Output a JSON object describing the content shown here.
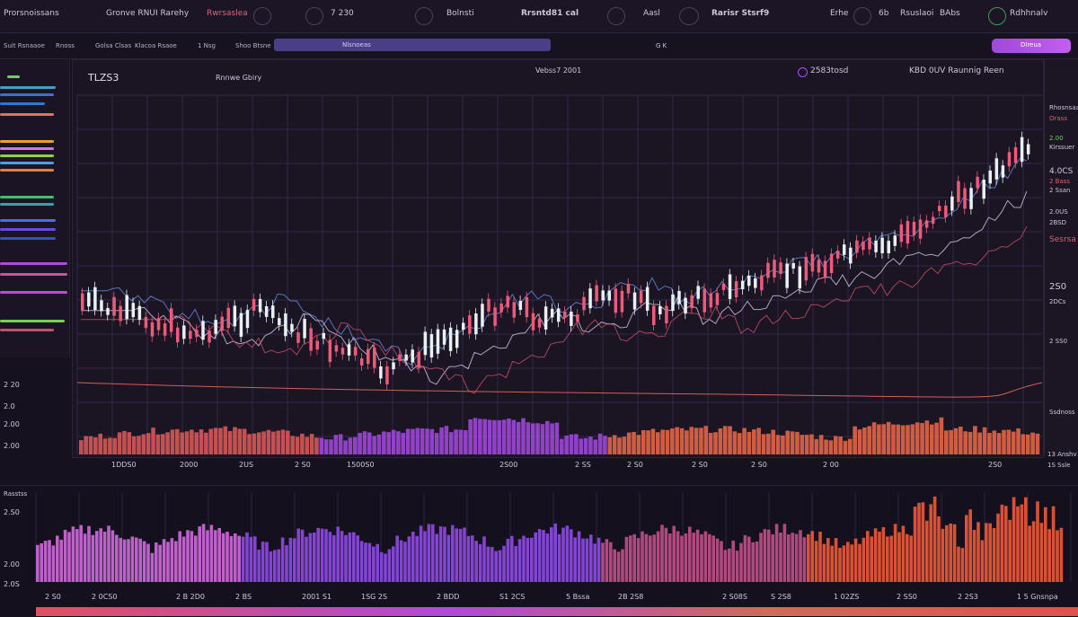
{
  "topbar": {
    "items": [
      "Prorsnoissans",
      "Gronve RNUI Rarehy",
      "Rwrsaslea",
      "7 230",
      "Bolnsti",
      "Rrsntd81 cal",
      "Aasl",
      "Rarisr Stsrf9",
      "Erhe",
      "6b",
      "Rsuslaoi",
      "BAbs",
      "Rdhhnalv"
    ]
  },
  "toolbar": {
    "items": [
      "Suit Rsnaaoe",
      "Rnoss",
      "Golsa Clsas",
      "Klacoa Rsaoe",
      "1 Nsg",
      "Shoo Btsne"
    ],
    "search_placeholder": "Nlsnoeas",
    "search_icons": "G  K",
    "cta_label": "Dlreua"
  },
  "chart": {
    "symbol": "TLZS3",
    "interval": "Rnnwe Gbiry",
    "center_title": "Vebss7 2001",
    "indicator": "2583tosd",
    "study": "KBD 0UV Raunnig Reen",
    "left_axis": [
      "2 20",
      "2.0",
      "2.00",
      "2.00"
    ],
    "x_labels": [
      "1DDS0",
      "2000",
      "2US",
      "2 S0",
      "1500S0",
      "2S00",
      "2 SS",
      "2 S0",
      "2 S0",
      "2 S0",
      "2 00",
      "2S0"
    ]
  },
  "right_panel": {
    "items": [
      "Rhosnsaa",
      "Orass",
      "2.00",
      "Kirssuer",
      "Ssdnoss",
      "4.0CS",
      "2 Bass",
      "2 Ssan",
      "2.0US",
      "2BSD",
      "Sesrsa",
      "2S0",
      "2DCs",
      "2 SS0",
      "13 Anshv",
      "1S Ssle"
    ]
  },
  "bottom": {
    "panel_title": "Rasstss",
    "y_labels": [
      "2.S0",
      "2.00",
      "2.0S"
    ],
    "x_labels": [
      "2 S0",
      "2 0CS0",
      "2 B 2D0",
      "2 BS",
      "2001 S1",
      "1SG 2S",
      "2 BDD",
      "S1 2CS",
      "5 Bssa",
      "2B 2S8",
      "2 S08S",
      "S 2S8",
      "1 02ZS",
      "2 SS0",
      "2 2S3",
      "1 5 Gnsnpa"
    ]
  },
  "colors": {
    "background": "#16111f",
    "accent": "#b14ff0",
    "bull": "#e8f0f4",
    "bear": "#f05a7a",
    "grid": "#2e2a48"
  }
}
